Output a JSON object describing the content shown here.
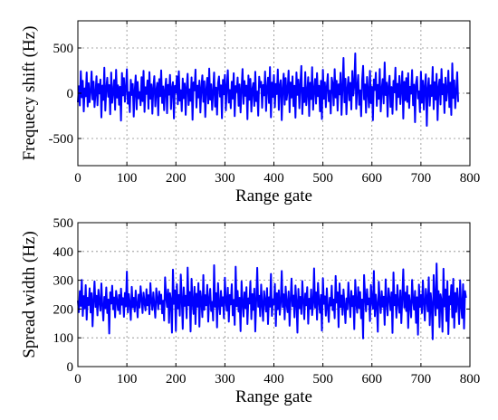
{
  "chart_data": [
    {
      "type": "line",
      "xlabel": "Range gate",
      "ylabel": "Frequecy shift (Hz)",
      "xlim": [
        0,
        800
      ],
      "ylim": [
        -800,
        800
      ],
      "xticks": [
        0,
        100,
        200,
        300,
        400,
        500,
        600,
        700,
        800
      ],
      "yticks": [
        -500,
        0,
        500
      ],
      "grid": true,
      "series": [
        {
          "color": "#0000ff",
          "x_start": 0,
          "x_step": 2,
          "values": [
            -101,
            78,
            -135,
            244,
            -45,
            137,
            -201,
            54,
            -34,
            230,
            -146,
            111,
            -99,
            17,
            240,
            -69,
            129,
            -153,
            2,
            188,
            -133,
            101,
            -3,
            151,
            -267,
            85,
            -74,
            282,
            -192,
            51,
            171,
            -39,
            90,
            -232,
            229,
            -106,
            23,
            146,
            -183,
            259,
            -49,
            88,
            -127,
            71,
            -302,
            224,
            -24,
            167,
            -94,
            50,
            265,
            -116,
            10,
            -209,
            149,
            -19,
            102,
            -258,
            27,
            196,
            -179,
            125,
            -56,
            13,
            -132,
            178,
            -87,
            248,
            -206,
            66,
            -8,
            141,
            -171,
            234,
            -60,
            97,
            -226,
            61,
            189,
            -145,
            28,
            115,
            -243,
            156,
            -32,
            252,
            -108,
            75,
            -188,
            39,
            160,
            -221,
            93,
            -16,
            202,
            -175,
            58,
            123,
            -279,
            81,
            6,
            187,
            -122,
            243,
            -82,
            34,
            -198,
            162,
            -55,
            108,
            -239,
            68,
            215,
            -130,
            44,
            -84,
            175,
            -293,
            120,
            31,
            261,
            -158,
            84,
            -47,
            140,
            -213,
            55,
            198,
            -95,
            132,
            -262,
            40,
            170,
            -113,
            272,
            -71,
            99,
            -184,
            20,
            229,
            -148,
            63,
            -236,
            110,
            185,
            -37,
            88,
            -276,
            147,
            -12,
            202,
            -190,
            71,
            254,
            -104,
            36,
            -166,
            128,
            -59,
            221,
            -253,
            79,
            14,
            174,
            -139,
            97,
            -212,
            47,
            268,
            -117,
            135,
            -29,
            84,
            -287,
            196,
            -72,
            159,
            -203,
            43,
            113,
            -140,
            238,
            -88,
            19,
            -247,
            183,
            67,
            126,
            -161,
            91,
            -24,
            240,
            -196,
            57,
            173,
            -108,
            289,
            -266,
            118,
            -41,
            201,
            -155,
            103,
            -9,
            262,
            -184,
            87,
            144,
            -297,
            52,
            216,
            -126,
            167,
            -73,
            38,
            250,
            -210,
            119,
            -48,
            186,
            -142,
            83,
            -270,
            230,
            -18,
            150,
            -166,
            96,
            301,
            -229,
            60,
            -98,
            234,
            -132,
            8,
            178,
            -251,
            116,
            -65,
            287,
            -182,
            42,
            158,
            -115,
            222,
            -33,
            82,
            -200,
            138,
            -285,
            259,
            -61,
            120,
            -154,
            73,
            211,
            -89,
            29,
            -224,
            172,
            103,
            -134,
            266,
            -47,
            137,
            -192,
            99,
            -13,
            226,
            -239,
            65,
            390,
            -101,
            160,
            -232,
            51,
            179,
            -78,
            115,
            -179,
            246,
            -25,
            89,
            440,
            -172,
            59,
            201,
            -127,
            32,
            -254,
            142,
            303,
            -68,
            98,
            -215,
            180,
            23,
            -156,
            248,
            -109,
            70,
            -298,
            153,
            35,
            227,
            -140,
            92,
            -61,
            267,
            -201,
            44,
            156,
            -113,
            340,
            -20,
            117,
            -258,
            80,
            193,
            -151,
            69,
            -227,
            137,
            10,
            282,
            -185,
            104,
            -42,
            191,
            -120,
            58,
            240,
            -280,
            126,
            -78,
            167,
            -96,
            221,
            -163,
            71,
            -5,
            256,
            -133,
            95,
            -320,
            112,
            181,
            -57,
            20,
            -207,
            238,
            -105,
            139,
            -181,
            77,
            209,
            -360,
            46,
            166,
            -138,
            88,
            -31,
            290,
            -176,
            122,
            -69,
            214,
            -297,
            64,
            151,
            -124,
            268,
            -12,
            99,
            -219,
            173,
            -81,
            37,
            250,
            -153,
            118,
            -240,
            330,
            -52,
            143,
            -165,
            19,
            232,
            -97
          ]
        }
      ]
    },
    {
      "type": "line",
      "xlabel": "Range gate",
      "ylabel": "Spread width (Hz)",
      "xlim": [
        0,
        800
      ],
      "ylim": [
        0,
        500
      ],
      "xticks": [
        0,
        100,
        200,
        300,
        400,
        500,
        600,
        700,
        800
      ],
      "yticks": [
        0,
        100,
        200,
        300,
        400,
        500
      ],
      "grid": true,
      "series": [
        {
          "color": "#0000ff",
          "x_start": 0,
          "x_step": 2,
          "values": [
            229,
            189,
            262,
            211,
            301,
            176,
            245,
            202,
            283,
            163,
            239,
            214,
            272,
            188,
            255,
            140,
            231,
            296,
            207,
            246,
            178,
            267,
            223,
            194,
            289,
            212,
            160,
            242,
            203,
            275,
            186,
            233,
            115,
            258,
            219,
            281,
            199,
            240,
            171,
            263,
            228,
            196,
            249,
            183,
            271,
            215,
            238,
            173,
            256,
            209,
            330,
            188,
            252,
            221,
            162,
            277,
            206,
            239,
            191,
            264,
            218,
            171,
            250,
            205,
            279,
            234,
            186,
            257,
            222,
            195,
            269,
            213,
            248,
            182,
            290,
            226,
            197,
            258,
            214,
            170,
            272,
            236,
            199,
            261,
            218,
            250,
            185,
            229,
            160,
            310,
            243,
            207,
            268,
            152,
            255,
            230,
            118,
            337,
            218,
            265,
            124,
            286,
            202,
            249,
            177,
            320,
            236,
            131,
            275,
            211,
            246,
            168,
            344,
            213,
            259,
            122,
            305,
            225,
            183,
            277,
            148,
            253,
            208,
            290,
            139,
            262,
            232,
            172,
            318,
            197,
            248,
            213,
            284,
            156,
            236,
            270,
            193,
            225,
            160,
            352,
            208,
            255,
            136,
            290,
            220,
            182,
            263,
            211,
            241,
            168,
            309,
            227,
            194,
            274,
            156,
            249,
            216,
            286,
            178,
            232,
            145,
            347,
            210,
            263,
            191,
            239,
            123,
            296,
            224,
            174,
            258,
            203,
            276,
            148,
            237,
            219,
            296,
            165,
            252,
            197,
            271,
            122,
            231,
            343,
            208,
            246,
            175,
            285,
            216,
            159,
            262,
            228,
            191,
            273,
            148,
            241,
            208,
            322,
            176,
            234,
            217,
            287,
            141,
            255,
            199,
            265,
            180,
            224,
            332,
            207,
            251,
            164,
            278,
            218,
            189,
            261,
            142,
            232,
            306,
            210,
            247,
            171,
            282,
            225,
            118,
            270,
            203,
            242,
            183,
            297,
            229,
            165,
            254,
            213,
            276,
            149,
            236,
            201,
            268,
            179,
            220,
            341,
            205,
            258,
            163,
            291,
            227,
            187,
            249,
            125,
            307,
            218,
            244,
            177,
            272,
            204,
            155,
            239,
            212,
            281,
            196,
            233,
            168,
            315,
            222,
            258,
            137,
            289,
            207,
            247,
            180,
            268,
            215,
            151,
            237,
            199,
            292,
            228,
            172,
            263,
            210,
            245,
            130,
            301,
            223,
            187,
            276,
            204,
            259,
            168,
            233,
            98,
            318,
            246,
            192,
            269,
            216,
            237,
            158,
            284,
            227,
            201,
            332,
            175,
            250,
            214,
            121,
            295,
            232,
            186,
            262,
            208,
            243,
            145,
            303,
            222,
            178,
            272,
            236,
            196,
            258,
            117,
            327,
            213,
            249,
            170,
            283,
            221,
            187,
            265,
            151,
            239,
            338,
            205,
            257,
            193,
            279,
            134,
            248,
            216,
            171,
            301,
            229,
            198,
            263,
            152,
            241,
            111,
            285,
            207,
            249,
            186,
            299,
            223,
            160,
            270,
            235,
            192,
            310,
            144,
            255,
            214,
            95,
            318,
            238,
            178,
            358,
            203,
            262,
            137,
            251,
            228,
            121,
            340,
            209,
            268,
            158,
            297,
            113,
            244,
            216,
            283,
            171,
            305,
            135,
            256,
            190,
            272,
            225,
            148,
            300,
            212,
            169,
            286,
            132,
            262,
            239
          ]
        }
      ]
    }
  ]
}
